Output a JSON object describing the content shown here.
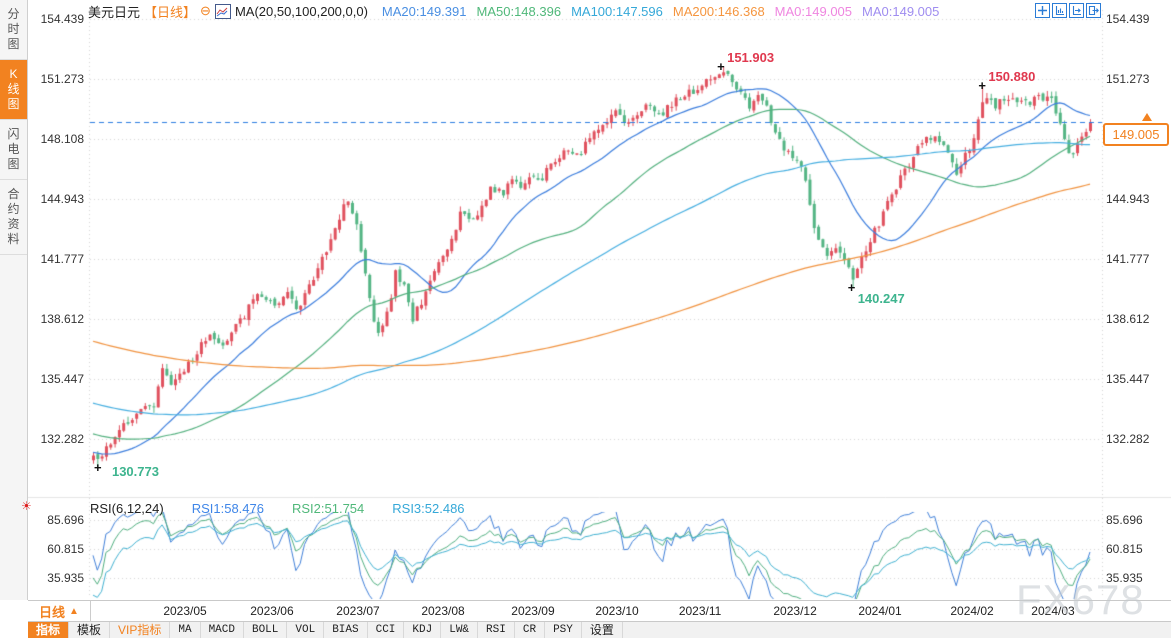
{
  "app": {
    "watermark": "FX678"
  },
  "colors": {
    "accent": "#f28220",
    "up": "#e0515e",
    "down": "#54b584",
    "grid": "#d4d4d4"
  },
  "misc": {
    "cross_marker": "+"
  },
  "sidebar": {
    "tabs": [
      {
        "label": "分时图",
        "active": false
      },
      {
        "label": "K线图",
        "active": true
      },
      {
        "label": "闪电图",
        "active": false
      },
      {
        "label": "合约资料",
        "active": false
      }
    ]
  },
  "header": {
    "symbol": "美元日元",
    "period_tag": "【日线】",
    "collapse_icon": "⊖",
    "ma_formula": "MA(20,50,100,200,0,0)",
    "ma_values": [
      {
        "label": "MA20:149.391",
        "color": "#4a8fe2"
      },
      {
        "label": "MA50:148.396",
        "color": "#50b87a"
      },
      {
        "label": "MA100:147.596",
        "color": "#35a8d8"
      },
      {
        "label": "MA200:146.368",
        "color": "#f5953e"
      },
      {
        "label": "MA0:149.005",
        "color": "#ef86e0"
      },
      {
        "label": "MA0:149.005",
        "color": "#9f8df0"
      }
    ],
    "window_icons": [
      "crosshair-pan-icon",
      "y-axis-scale-icon",
      "x-axis-scale-icon",
      "exit-fullscreen-icon"
    ]
  },
  "price_axis": {
    "labels": [
      "154.439",
      "151.273",
      "148.108",
      "144.943",
      "141.777",
      "138.612",
      "135.447",
      "132.282"
    ]
  },
  "rsi_axis": {
    "labels": [
      "85.696",
      "60.815",
      "35.935"
    ]
  },
  "current_price": {
    "value": "149.005"
  },
  "rsi_header": {
    "formula": "RSI(6,12,24)",
    "values": [
      {
        "label": "RSI1:58.476",
        "color": "#3f86e8"
      },
      {
        "label": "RSI2:51.754",
        "color": "#50b87a"
      },
      {
        "label": "RSI3:52.486",
        "color": "#35a8d8"
      }
    ]
  },
  "xaxis": {
    "period_label": "日线",
    "period_arrow": "▲",
    "months": [
      {
        "label": "2023/05",
        "t": 0.0923
      },
      {
        "label": "2023/06",
        "t": 0.1795
      },
      {
        "label": "2023/07",
        "t": 0.2658
      },
      {
        "label": "2023/08",
        "t": 0.3511
      },
      {
        "label": "2023/09",
        "t": 0.4413
      },
      {
        "label": "2023/10",
        "t": 0.5256
      },
      {
        "label": "2023/11",
        "t": 0.6089
      },
      {
        "label": "2023/12",
        "t": 0.7042
      },
      {
        "label": "2024/01",
        "t": 0.7894
      },
      {
        "label": "2024/02",
        "t": 0.8817
      },
      {
        "label": "2024/03",
        "t": 0.9629
      }
    ]
  },
  "bottom_toolbar": {
    "items": [
      {
        "label": "指标",
        "variant": "active"
      },
      {
        "label": "模板",
        "variant": "plain"
      },
      {
        "label": "VIP指标",
        "variant": "vip"
      },
      {
        "label": "MA",
        "variant": "mono"
      },
      {
        "label": "MACD",
        "variant": "mono"
      },
      {
        "label": "BOLL",
        "variant": "mono"
      },
      {
        "label": "VOL",
        "variant": "mono"
      },
      {
        "label": "BIAS",
        "variant": "mono"
      },
      {
        "label": "CCI",
        "variant": "mono"
      },
      {
        "label": "KDJ",
        "variant": "mono"
      },
      {
        "label": "LW&",
        "variant": "mono"
      },
      {
        "label": "RSI",
        "variant": "mono"
      },
      {
        "label": "CR",
        "variant": "mono"
      },
      {
        "label": "PSY",
        "variant": "mono"
      },
      {
        "label": "设置",
        "variant": "plain"
      }
    ]
  },
  "annotations": [
    {
      "text": "151.903",
      "t": 0.631,
      "price": 151.903,
      "color": "#e0384e",
      "placement": "above"
    },
    {
      "text": "150.880",
      "t": 0.893,
      "price": 150.88,
      "color": "#e0384e",
      "placement": "above"
    },
    {
      "text": "140.247",
      "t": 0.762,
      "price": 140.247,
      "color": "#3db48e",
      "placement": "below"
    },
    {
      "text": "130.773",
      "t": 0.006,
      "price": 130.773,
      "color": "#3db48e",
      "placement": "right"
    }
  ],
  "chart_data": {
    "type": "candlestick",
    "symbol": "USD/JPY (美元日元)",
    "timeframe": "daily",
    "y_axis_ticks": [
      154.439,
      151.273,
      148.108,
      144.943,
      141.777,
      138.612,
      135.447,
      132.282
    ],
    "candle_count": 232,
    "candle_colors": {
      "up": "#e0515e",
      "down": "#54b584"
    },
    "close_path_anchors": [
      [
        0.0,
        131.4
      ],
      [
        0.006,
        131.1
      ],
      [
        0.018,
        132.2
      ],
      [
        0.035,
        133.3
      ],
      [
        0.05,
        133.8
      ],
      [
        0.062,
        134.2
      ],
      [
        0.068,
        136.0
      ],
      [
        0.078,
        135.3
      ],
      [
        0.092,
        135.9
      ],
      [
        0.102,
        136.8
      ],
      [
        0.115,
        137.6
      ],
      [
        0.13,
        137.3
      ],
      [
        0.145,
        138.3
      ],
      [
        0.16,
        139.6
      ],
      [
        0.172,
        139.9
      ],
      [
        0.18,
        139.3
      ],
      [
        0.195,
        139.9
      ],
      [
        0.205,
        139.2
      ],
      [
        0.218,
        140.5
      ],
      [
        0.232,
        142.0
      ],
      [
        0.243,
        143.5
      ],
      [
        0.253,
        144.9
      ],
      [
        0.262,
        144.0
      ],
      [
        0.27,
        141.8
      ],
      [
        0.28,
        138.9
      ],
      [
        0.287,
        137.8
      ],
      [
        0.295,
        138.9
      ],
      [
        0.303,
        141.0
      ],
      [
        0.312,
        140.2
      ],
      [
        0.32,
        138.6
      ],
      [
        0.33,
        139.6
      ],
      [
        0.34,
        140.8
      ],
      [
        0.351,
        141.9
      ],
      [
        0.362,
        143.2
      ],
      [
        0.37,
        144.4
      ],
      [
        0.38,
        143.6
      ],
      [
        0.39,
        144.8
      ],
      [
        0.4,
        145.6
      ],
      [
        0.41,
        145.2
      ],
      [
        0.42,
        146.0
      ],
      [
        0.43,
        145.5
      ],
      [
        0.441,
        146.3
      ],
      [
        0.45,
        145.9
      ],
      [
        0.46,
        147.0
      ],
      [
        0.475,
        147.4
      ],
      [
        0.49,
        147.5
      ],
      [
        0.505,
        148.6
      ],
      [
        0.515,
        149.2
      ],
      [
        0.525,
        149.6
      ],
      [
        0.535,
        148.9
      ],
      [
        0.545,
        149.5
      ],
      [
        0.558,
        149.9
      ],
      [
        0.57,
        149.5
      ],
      [
        0.582,
        150.1
      ],
      [
        0.595,
        150.5
      ],
      [
        0.609,
        150.8
      ],
      [
        0.62,
        151.3
      ],
      [
        0.631,
        151.65
      ],
      [
        0.64,
        151.2
      ],
      [
        0.65,
        150.5
      ],
      [
        0.658,
        149.6
      ],
      [
        0.666,
        150.4
      ],
      [
        0.675,
        149.8
      ],
      [
        0.683,
        148.6
      ],
      [
        0.69,
        147.8
      ],
      [
        0.697,
        147.4
      ],
      [
        0.704,
        147.2
      ],
      [
        0.715,
        145.8
      ],
      [
        0.722,
        143.5
      ],
      [
        0.733,
        142.0
      ],
      [
        0.745,
        142.4
      ],
      [
        0.755,
        141.6
      ],
      [
        0.762,
        140.6
      ],
      [
        0.77,
        141.8
      ],
      [
        0.789,
        143.8
      ],
      [
        0.8,
        145.2
      ],
      [
        0.815,
        146.5
      ],
      [
        0.828,
        147.8
      ],
      [
        0.843,
        148.3
      ],
      [
        0.855,
        147.9
      ],
      [
        0.864,
        146.2
      ],
      [
        0.875,
        147.3
      ],
      [
        0.881,
        147.8
      ],
      [
        0.893,
        150.5
      ],
      [
        0.905,
        149.9
      ],
      [
        0.92,
        150.3
      ],
      [
        0.935,
        150.0
      ],
      [
        0.95,
        150.4
      ],
      [
        0.963,
        150.1
      ],
      [
        0.972,
        148.4
      ],
      [
        0.978,
        147.2
      ],
      [
        0.985,
        147.6
      ],
      [
        0.993,
        148.2
      ],
      [
        1.0,
        149.005
      ]
    ],
    "noise": {
      "seed": 11,
      "close_jitter": 0.22,
      "wick_extra": 0.3,
      "open_gap": 0.1
    },
    "key_points": {
      "period_high": {
        "t": 0.631,
        "price": 151.903
      },
      "recent_high": {
        "t": 0.893,
        "price": 150.88
      },
      "december_low": {
        "t": 0.762,
        "price": 140.247
      },
      "period_low": {
        "t": 0.006,
        "price": 130.773
      },
      "last_close": 149.005
    },
    "prehistory": {
      "start": 144,
      "end": 131,
      "count": 200
    },
    "moving_averages": [
      {
        "period": 20,
        "color": "#3b7ddd",
        "current": 149.391
      },
      {
        "period": 50,
        "color": "#53b07e",
        "current": 148.396
      },
      {
        "period": 100,
        "color": "#45aee0",
        "current": 147.596
      },
      {
        "period": 200,
        "color": "#f0923f",
        "current": 146.368
      }
    ],
    "current_price_line": {
      "value": 149.005,
      "color": "#2b7ce0",
      "style": "dashed"
    },
    "rsi_pane": {
      "periods": [
        6,
        12,
        24
      ],
      "colors": [
        "#3f7fd8",
        "#4fae7f",
        "#3fb0d0"
      ],
      "current": [
        58.476,
        51.754,
        52.486
      ],
      "y_axis_ticks": [
        85.696,
        60.815,
        35.935
      ]
    }
  }
}
